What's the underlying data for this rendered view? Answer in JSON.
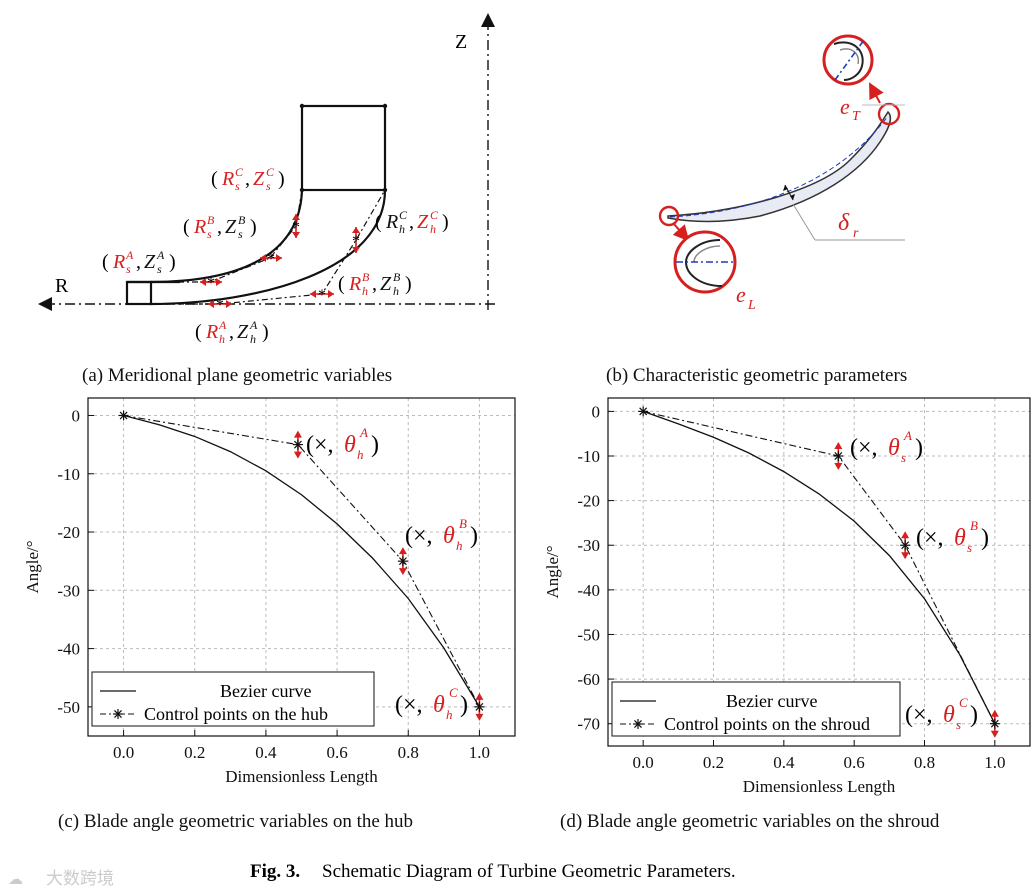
{
  "figure_caption": {
    "label": "Fig. 3.",
    "text": "Schematic Diagram of Turbine Geometric Parameters."
  },
  "watermark": "大数跨境",
  "panel_a": {
    "caption": "(a) Meridional plane geometric variables",
    "axis_z": "Z",
    "axis_r": "R",
    "labels": [
      {
        "R": "R",
        "r_sub": "s",
        "r_sup": "C",
        "Z": "Z",
        "z_sub": "s",
        "z_sup": "C"
      },
      {
        "R": "R",
        "r_sub": "s",
        "r_sup": "B",
        "Z": "Z",
        "z_sub": "s",
        "z_sup": "B"
      },
      {
        "R": "R",
        "r_sub": "s",
        "r_sup": "A",
        "Z": "Z",
        "z_sub": "s",
        "z_sup": "A"
      },
      {
        "R": "R",
        "r_sub": "h",
        "r_sup": "C",
        "Z": "Z",
        "z_sub": "h",
        "z_sup": "C"
      },
      {
        "R": "R",
        "r_sub": "h",
        "r_sup": "B",
        "Z": "Z",
        "z_sub": "h",
        "z_sup": "B"
      },
      {
        "R": "R",
        "r_sub": "h",
        "r_sup": "A",
        "Z": "Z",
        "z_sub": "h",
        "z_sup": "A"
      }
    ]
  },
  "panel_b": {
    "caption": "(b) Characteristic geometric parameters",
    "e_T": {
      "main": "e",
      "sub": "T"
    },
    "delta_r": {
      "main": "δ",
      "sub": "r"
    },
    "e_L": {
      "main": "e",
      "sub": "L"
    }
  },
  "panel_c": {
    "caption": "(c) Blade angle geometric variables on the hub",
    "annotations": [
      {
        "sym": "θ",
        "sub": "h",
        "sup": "A"
      },
      {
        "sym": "θ",
        "sub": "h",
        "sup": "B"
      },
      {
        "sym": "θ",
        "sub": "h",
        "sup": "C"
      }
    ]
  },
  "panel_d": {
    "caption": "(d) Blade angle geometric variables on the shroud",
    "annotations": [
      {
        "sym": "θ",
        "sub": "s",
        "sup": "A"
      },
      {
        "sym": "θ",
        "sub": "s",
        "sup": "B"
      },
      {
        "sym": "θ",
        "sub": "s",
        "sup": "C"
      }
    ]
  },
  "chart_data": [
    {
      "type": "line",
      "xlabel": "Dimensionless Length",
      "ylabel": "Angle/°",
      "xlim": [
        -0.1,
        1.1
      ],
      "ylim": [
        -55,
        3
      ],
      "xticks": [
        "0.0",
        "0.2",
        "0.4",
        "0.6",
        "0.8",
        "1.0"
      ],
      "yticks": [
        "0",
        "-10",
        "-20",
        "-30",
        "-40",
        "-50"
      ],
      "xtick_values": [
        0,
        0.2,
        0.4,
        0.6,
        0.8,
        1.0
      ],
      "ytick_values": [
        0,
        -10,
        -20,
        -30,
        -40,
        -50
      ],
      "grid": true,
      "legend_position": "bottom-left",
      "series": [
        {
          "name": "Bezier curve",
          "style": "solid",
          "x": [
            0,
            0.1,
            0.2,
            0.3,
            0.4,
            0.5,
            0.6,
            0.7,
            0.8,
            0.9,
            1.0
          ],
          "y": [
            0,
            -1.6,
            -3.6,
            -6.2,
            -9.5,
            -13.6,
            -18.6,
            -24.5,
            -31.4,
            -39.9,
            -50
          ]
        },
        {
          "name": "Control points on the hub",
          "style": "dashdot-star",
          "x": [
            0,
            0.49,
            0.785,
            1.0
          ],
          "y": [
            0,
            -5,
            -25,
            -50
          ]
        }
      ]
    },
    {
      "type": "line",
      "xlabel": "Dimensionless Length",
      "ylabel": "Angle/°",
      "xlim": [
        -0.1,
        1.1
      ],
      "ylim": [
        -75,
        3
      ],
      "xticks": [
        "0.0",
        "0.2",
        "0.4",
        "0.6",
        "0.8",
        "1.0"
      ],
      "yticks": [
        "0",
        "-10",
        "-20",
        "-30",
        "-40",
        "-50",
        "-60",
        "-70"
      ],
      "xtick_values": [
        0,
        0.2,
        0.4,
        0.6,
        0.8,
        1.0
      ],
      "ytick_values": [
        0,
        -10,
        -20,
        -30,
        -40,
        -50,
        -60,
        -70
      ],
      "grid": true,
      "legend_position": "bottom-left",
      "series": [
        {
          "name": "Bezier curve",
          "style": "solid",
          "x": [
            0,
            0.1,
            0.2,
            0.3,
            0.4,
            0.5,
            0.6,
            0.7,
            0.8,
            0.9,
            1.0
          ],
          "y": [
            0,
            -2.8,
            -5.8,
            -9.3,
            -13.5,
            -18.5,
            -24.6,
            -32.3,
            -42.0,
            -54.5,
            -70
          ]
        },
        {
          "name": "Control points on the shroud",
          "style": "dashdot-star",
          "x": [
            0,
            0.555,
            0.745,
            1.0
          ],
          "y": [
            0,
            -10,
            -30,
            -70
          ]
        }
      ]
    }
  ],
  "colors": {
    "accent": "#d62020",
    "ink": "#111111",
    "dash_blue": "#1a3cc8",
    "grid": "#bbbbbb"
  }
}
